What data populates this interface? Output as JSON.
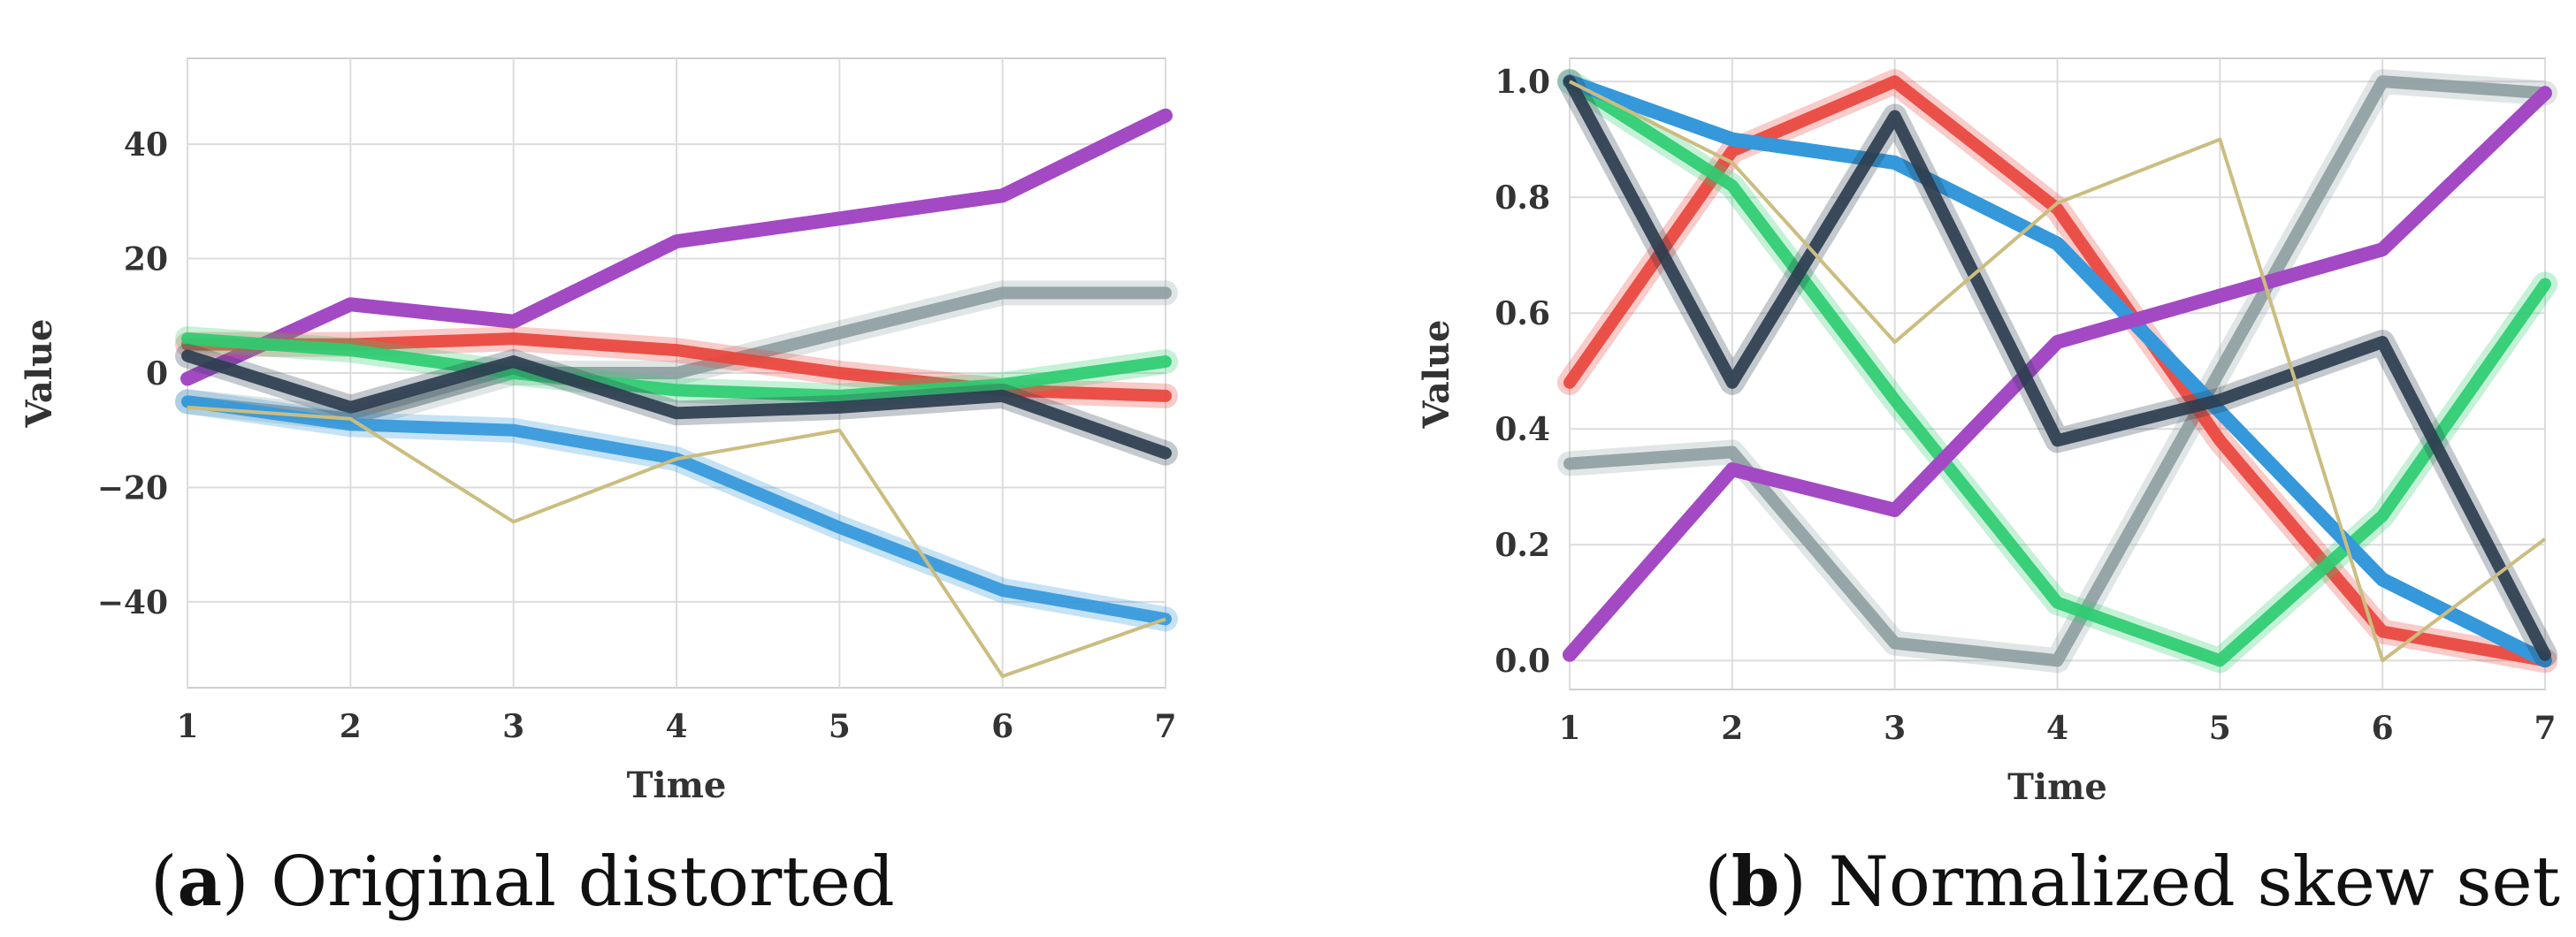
{
  "captions": [
    {
      "letter": "a",
      "open": "(",
      "close": ")",
      "text": "Original distorted"
    },
    {
      "letter": "b",
      "open": "(",
      "close": ")",
      "text": "Normalized skew set"
    }
  ],
  "chart_data": [
    {
      "type": "line",
      "title": "",
      "xlabel": "Time",
      "ylabel": "Value",
      "x": [
        1,
        2,
        3,
        4,
        5,
        6,
        7
      ],
      "xticks": [
        1,
        2,
        3,
        4,
        5,
        6,
        7
      ],
      "yticks": [
        -40,
        -20,
        0,
        20,
        40
      ],
      "ytick_labels": [
        "−40",
        "−20",
        "0",
        "20",
        "40"
      ],
      "xlim": [
        1,
        7
      ],
      "ylim": [
        -55,
        55
      ],
      "grid": true,
      "series": [
        {
          "color": "#a349c4",
          "values": [
            -1,
            12,
            9,
            23,
            27,
            31,
            45
          ],
          "style": "thick"
        },
        {
          "color": "#8fa0a3",
          "values": [
            -5,
            -8,
            0,
            0,
            7,
            14,
            14
          ],
          "style": "band"
        },
        {
          "color": "#e8453c",
          "values": [
            5,
            5,
            6,
            4,
            0,
            -3,
            -4
          ],
          "style": "band"
        },
        {
          "color": "#2ecc71",
          "values": [
            6,
            4,
            0,
            -3,
            -4,
            -2,
            2
          ],
          "style": "band"
        },
        {
          "color": "#2c3e50",
          "values": [
            3,
            -6,
            2,
            -7,
            -6,
            -4,
            -14
          ],
          "style": "band"
        },
        {
          "color": "#3498db",
          "values": [
            -5,
            -9,
            -10,
            -15,
            -27,
            -38,
            -43
          ],
          "style": "band"
        },
        {
          "color": "#cbbd80",
          "values": [
            -6,
            -8,
            -26,
            -15,
            -10,
            -53,
            -43
          ],
          "style": "thin"
        }
      ]
    },
    {
      "type": "line",
      "title": "",
      "xlabel": "Time",
      "ylabel": "Value",
      "x": [
        1,
        2,
        3,
        4,
        5,
        6,
        7
      ],
      "xticks": [
        1,
        2,
        3,
        4,
        5,
        6,
        7
      ],
      "yticks": [
        0.0,
        0.2,
        0.4,
        0.6,
        0.8,
        1.0
      ],
      "ytick_labels": [
        "0.0",
        "0.2",
        "0.4",
        "0.6",
        "0.8",
        "1.0"
      ],
      "xlim": [
        1,
        7
      ],
      "ylim": [
        -0.05,
        1.04
      ],
      "grid": true,
      "series": [
        {
          "color": "#8fa0a3",
          "values": [
            0.34,
            0.36,
            0.03,
            0.0,
            0.5,
            1.0,
            0.98
          ],
          "style": "band"
        },
        {
          "color": "#e8453c",
          "values": [
            0.48,
            0.88,
            1.0,
            0.78,
            0.38,
            0.05,
            0.0
          ],
          "style": "band"
        },
        {
          "color": "#2ecc71",
          "values": [
            1.0,
            0.82,
            0.45,
            0.1,
            0.0,
            0.25,
            0.65
          ],
          "style": "band"
        },
        {
          "color": "#3498db",
          "values": [
            1.0,
            0.9,
            0.86,
            0.72,
            0.43,
            0.14,
            0.0
          ],
          "style": "thick"
        },
        {
          "color": "#a349c4",
          "values": [
            0.01,
            0.33,
            0.26,
            0.55,
            0.63,
            0.71,
            0.98
          ],
          "style": "thick"
        },
        {
          "color": "#2c3e50",
          "values": [
            1.0,
            0.48,
            0.94,
            0.38,
            0.45,
            0.55,
            0.01
          ],
          "style": "band"
        },
        {
          "color": "#cbbd80",
          "values": [
            1.0,
            0.86,
            0.55,
            0.79,
            0.9,
            0.0,
            0.21
          ],
          "style": "thin"
        }
      ]
    }
  ]
}
